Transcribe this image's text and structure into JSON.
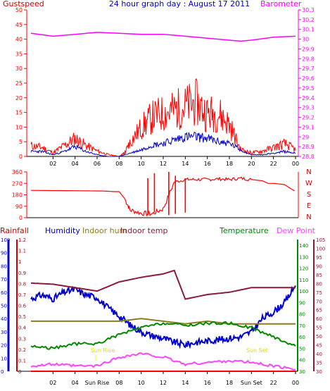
{
  "title": "24 hour graph day : August 17 2011",
  "colors": {
    "red": "#ff0000",
    "blue": "#0000cc",
    "magenta": "#ff00ff",
    "darkred": "#cc0033",
    "olive": "#8b7d1b",
    "maroon": "#8b1a3a",
    "green": "#008800",
    "pink": "#ff44ff",
    "yellow": "#ffff00"
  },
  "chart_data": [
    {
      "type": "line",
      "name": "wind-and-barometer",
      "title": "24 hour graph day : August 17 2011",
      "left_axis_label": "Gustspeed",
      "right_axis_label": "Barometer",
      "left_ticks": [
        0,
        5,
        10,
        15,
        20,
        25,
        30,
        35,
        40,
        45,
        50
      ],
      "right_ticks": [
        28.8,
        28.9,
        29.0,
        29.1,
        29.2,
        29.3,
        29.4,
        29.5,
        29.6,
        29.7,
        29.8,
        29.9,
        30.0,
        30.1,
        30.2,
        30.3
      ],
      "right_tick_labels": [
        "28.8",
        "28.9",
        "29",
        "29.1",
        "29.2",
        "29.3",
        "29.4",
        "29.5",
        "29.6",
        "29.7",
        "29.8",
        "29.9",
        "30",
        "30.1",
        "30.2",
        "30.3"
      ],
      "ylim_left": [
        0,
        50
      ],
      "ylim_right": [
        28.8,
        30.3
      ],
      "x_hours": [
        0,
        1,
        2,
        3,
        4,
        5,
        6,
        7,
        8,
        9,
        10,
        11,
        12,
        13,
        14,
        15,
        16,
        17,
        18,
        19,
        20,
        21,
        22,
        23,
        24
      ],
      "x_tick_labels": [
        "02",
        "04",
        "06",
        "08",
        "10",
        "12",
        "14",
        "16",
        "18",
        "20",
        "22",
        "00"
      ],
      "x_tick_hours": [
        2,
        4,
        6,
        8,
        10,
        12,
        14,
        16,
        18,
        20,
        22,
        24
      ],
      "series": [
        {
          "color": "#ff0000",
          "axis": "left",
          "x": [
            0,
            1,
            2,
            3,
            4,
            5,
            6,
            7,
            8,
            8.5,
            9,
            10,
            11,
            12,
            13,
            14,
            15,
            16,
            17,
            18,
            19,
            20,
            21,
            22,
            23,
            24
          ],
          "y": [
            3,
            2.5,
            1,
            3,
            5,
            3,
            1.5,
            0.5,
            0,
            1,
            4,
            8,
            11,
            12,
            13,
            14,
            15,
            12,
            12,
            9,
            2,
            1,
            1.5,
            2.5,
            3.5,
            2
          ]
        },
        {
          "color": "#0000cc",
          "axis": "left",
          "x": [
            0,
            1,
            2,
            3,
            4,
            5,
            6,
            7,
            8,
            9,
            10,
            11,
            12,
            13,
            14,
            15,
            16,
            17,
            18,
            19,
            20,
            21,
            22,
            23,
            24
          ],
          "y": [
            1.5,
            1.5,
            0.5,
            1.5,
            3,
            1.5,
            0.5,
            0,
            0,
            1,
            2,
            3.5,
            4,
            5,
            6,
            6,
            5.5,
            4.5,
            4,
            2,
            0.5,
            0.5,
            1,
            1.5,
            1
          ]
        },
        {
          "color": "#ff00ff",
          "axis": "right",
          "x": [
            0,
            2,
            4,
            6,
            8,
            10,
            12,
            14,
            16,
            18,
            19,
            20,
            22,
            24
          ],
          "y": [
            30.06,
            30.03,
            30.05,
            30.07,
            30.06,
            30.05,
            30.05,
            30.03,
            30.01,
            29.99,
            29.98,
            29.99,
            30.02,
            30.03
          ]
        }
      ]
    },
    {
      "type": "line",
      "name": "wind-direction",
      "left_ticks": [
        0,
        90,
        180,
        270,
        360
      ],
      "right_labels": [
        "N",
        "W",
        "S",
        "E",
        "N"
      ],
      "ylim": [
        0,
        360
      ],
      "series": [
        {
          "color": "#ff0000",
          "x": [
            0,
            6.5,
            6.5,
            7.5,
            8,
            8.5,
            9,
            10,
            11,
            12,
            13,
            14,
            15,
            16,
            17,
            18,
            19,
            20,
            21,
            21.5,
            22,
            23,
            24
          ],
          "y": [
            215,
            210,
            210,
            205,
            205,
            150,
            60,
            35,
            30,
            70,
            280,
            300,
            300,
            300,
            305,
            300,
            310,
            300,
            290,
            270,
            270,
            260,
            205
          ]
        }
      ],
      "direction_spikes": [
        {
          "x": 10.6,
          "low": 20,
          "high": 310
        },
        {
          "x": 11.2,
          "low": 40,
          "high": 350
        },
        {
          "x": 12.5,
          "low": 20,
          "high": 360
        },
        {
          "x": 13.1,
          "low": 30,
          "high": 330
        },
        {
          "x": 14,
          "low": 40,
          "high": 310
        }
      ]
    },
    {
      "type": "line",
      "name": "humidity-temperature",
      "labels": {
        "rainfall": "Rainfall",
        "humidity": "Humidity",
        "indoor_hum": "Indoor hum",
        "indoor_temp": "Indoor temp",
        "temperature": "Temperature",
        "dew_point": "Dew Point"
      },
      "axis1_ticks": [
        0,
        0.1,
        0.2,
        0.3,
        0.4,
        0.5,
        0.6,
        0.7,
        0.8,
        0.9,
        1,
        1.1,
        1.2
      ],
      "axis1_tick_labels": [
        "0",
        "0.1",
        "0.2",
        "0.3",
        "0.4",
        "0.5",
        "0.6",
        "0.7",
        "0.8",
        "0.9",
        "1",
        "1.1",
        "1.2"
      ],
      "axis1_lim": [
        0,
        1.2
      ],
      "axis2_ticks": [
        0,
        10,
        20,
        30,
        40,
        50,
        60,
        70,
        80,
        90,
        100
      ],
      "axis2_lim": [
        0,
        100
      ],
      "temp_ticks": [
        30,
        40,
        50,
        60,
        70,
        80,
        90,
        100,
        110,
        120,
        130,
        140
      ],
      "temp_lim": [
        30,
        145
      ],
      "dew_ticks": [
        30,
        35,
        40,
        45,
        50,
        55,
        60,
        65,
        70,
        75,
        80,
        85,
        90,
        95,
        100,
        105
      ],
      "dew_lim": [
        30,
        105
      ],
      "x_tick_labels": [
        "02",
        "04",
        "Sun Rise",
        "08",
        "10",
        "12",
        "14",
        "16",
        "18",
        "Sun Set",
        "22",
        "00"
      ],
      "x_tick_hours": [
        2,
        4,
        6,
        8,
        10,
        12,
        14,
        16,
        18,
        20,
        22,
        24
      ],
      "sunrise_label": "Sun Rise",
      "sunset_label": "Sun Set",
      "sunrise_hour": 6,
      "sunset_hour": 20,
      "series": [
        {
          "name": "Humidity",
          "color": "#0000cc",
          "axis": "axis2",
          "x": [
            0,
            1,
            2,
            3,
            4,
            5,
            6,
            7,
            8,
            9,
            10,
            11,
            12,
            13,
            14,
            15,
            16,
            17,
            18,
            19,
            20,
            21,
            22,
            23,
            24
          ],
          "y": [
            55,
            58,
            55,
            60,
            62,
            58,
            56,
            48,
            42,
            35,
            30,
            27,
            25,
            22,
            20,
            22,
            23,
            24,
            25,
            26,
            30,
            40,
            45,
            52,
            65
          ]
        },
        {
          "name": "Indoor hum",
          "color": "#8b7d1b",
          "axis": "axis2",
          "x": [
            0,
            2,
            4,
            6,
            8,
            10,
            12,
            14,
            16,
            18,
            20,
            22,
            24
          ],
          "y": [
            38,
            38,
            38,
            38,
            38,
            40,
            38,
            36,
            38,
            36,
            36,
            36,
            36
          ]
        },
        {
          "name": "Indoor temp",
          "color": "#8b1a3a",
          "axis": "temp",
          "x": [
            0,
            2,
            4,
            6,
            8,
            10,
            12,
            13,
            14,
            16,
            18,
            20,
            22,
            24
          ],
          "y": [
            107,
            106,
            103,
            100,
            108,
            112,
            115,
            118,
            93,
            97,
            99,
            103,
            103,
            103
          ]
        },
        {
          "name": "Temperature",
          "color": "#008800",
          "axis": "temp",
          "x": [
            0,
            2,
            4,
            6,
            8,
            10,
            12,
            14,
            16,
            18,
            20,
            22,
            24
          ],
          "y": [
            52,
            50,
            54,
            54,
            62,
            68,
            72,
            70,
            72,
            72,
            68,
            60,
            52
          ]
        },
        {
          "name": "Dew Point",
          "color": "#ff44ff",
          "axis": "dew",
          "x": [
            0,
            2,
            4,
            6,
            8,
            10,
            12,
            14,
            16,
            18,
            20,
            22,
            24
          ],
          "y": [
            33,
            34,
            33,
            33,
            38,
            40,
            38,
            34,
            35,
            36,
            35,
            33,
            31
          ]
        },
        {
          "name": "Rainfall",
          "color": "#ff0000",
          "axis": "axis1",
          "x": [
            0,
            24
          ],
          "y": [
            0,
            0
          ]
        }
      ]
    }
  ]
}
